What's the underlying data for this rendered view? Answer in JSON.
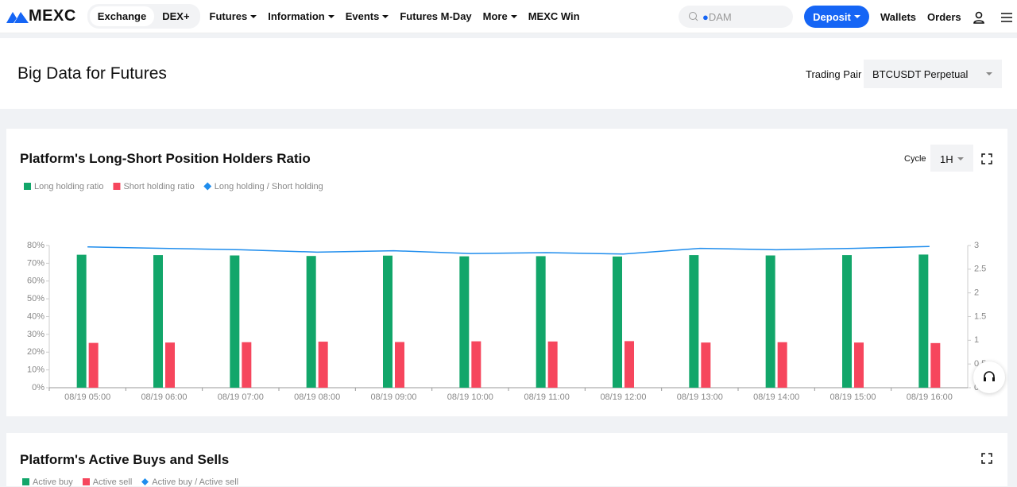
{
  "nav": {
    "logo": "MEXC",
    "tabs": [
      "Exchange",
      "DEX+"
    ],
    "menu": [
      "Futures",
      "Information",
      "Events",
      "Futures M-Day",
      "More",
      "MEXC Win"
    ],
    "search": "DAM",
    "deposit": "Deposit",
    "links": [
      "Wallets",
      "Orders"
    ]
  },
  "header": {
    "title": "Big Data for Futures",
    "pair_label": "Trading Pair",
    "pair": "BTCUSDT Perpetual"
  },
  "chart_data": {
    "type": "bar",
    "title": "Platform's Long-Short Position Holders Ratio",
    "cycle_label": "Cycle",
    "cycle": "1H",
    "categories": [
      "08/19 05:00",
      "08/19 06:00",
      "08/19 07:00",
      "08/19 08:00",
      "08/19 09:00",
      "08/19 10:00",
      "08/19 11:00",
      "08/19 12:00",
      "08/19 13:00",
      "08/19 14:00",
      "08/19 15:00",
      "08/19 16:00"
    ],
    "series": [
      {
        "name": "Long holding ratio",
        "color": "#12a66a",
        "values": [
          74.8,
          74.6,
          74.4,
          74.1,
          74.3,
          73.9,
          74.0,
          73.8,
          74.6,
          74.4,
          74.6,
          74.9
        ]
      },
      {
        "name": "Short holding ratio",
        "color": "#f6465d",
        "values": [
          25.2,
          25.4,
          25.6,
          25.9,
          25.7,
          26.1,
          26.0,
          26.2,
          25.4,
          25.6,
          25.4,
          25.1
        ]
      },
      {
        "name": "Long holding / Short holding",
        "color": "#1f8ded",
        "type": "line",
        "axis": "y2",
        "values": [
          2.97,
          2.94,
          2.91,
          2.86,
          2.89,
          2.83,
          2.85,
          2.82,
          2.94,
          2.91,
          2.94,
          2.98
        ]
      }
    ],
    "ylim": [
      0,
      80
    ],
    "yticks": [
      {
        "value": 0,
        "label": "0%"
      },
      {
        "value": 10,
        "label": "10%"
      },
      {
        "value": 20,
        "label": "20%"
      },
      {
        "value": 30,
        "label": "30%"
      },
      {
        "value": 40,
        "label": "40%"
      },
      {
        "value": 50,
        "label": "50%"
      },
      {
        "value": 60,
        "label": "60%"
      },
      {
        "value": 70,
        "label": "70%"
      },
      {
        "value": 80,
        "label": "80%"
      }
    ],
    "y2lim": [
      0,
      3
    ],
    "y2ticks": [
      0,
      0.5,
      1,
      1.5,
      2,
      2.5,
      3
    ],
    "grid": false
  },
  "section2": {
    "title": "Platform's Active Buys and Sells",
    "legend": [
      "Active buy",
      "Active sell",
      "Active buy / Active sell"
    ]
  }
}
